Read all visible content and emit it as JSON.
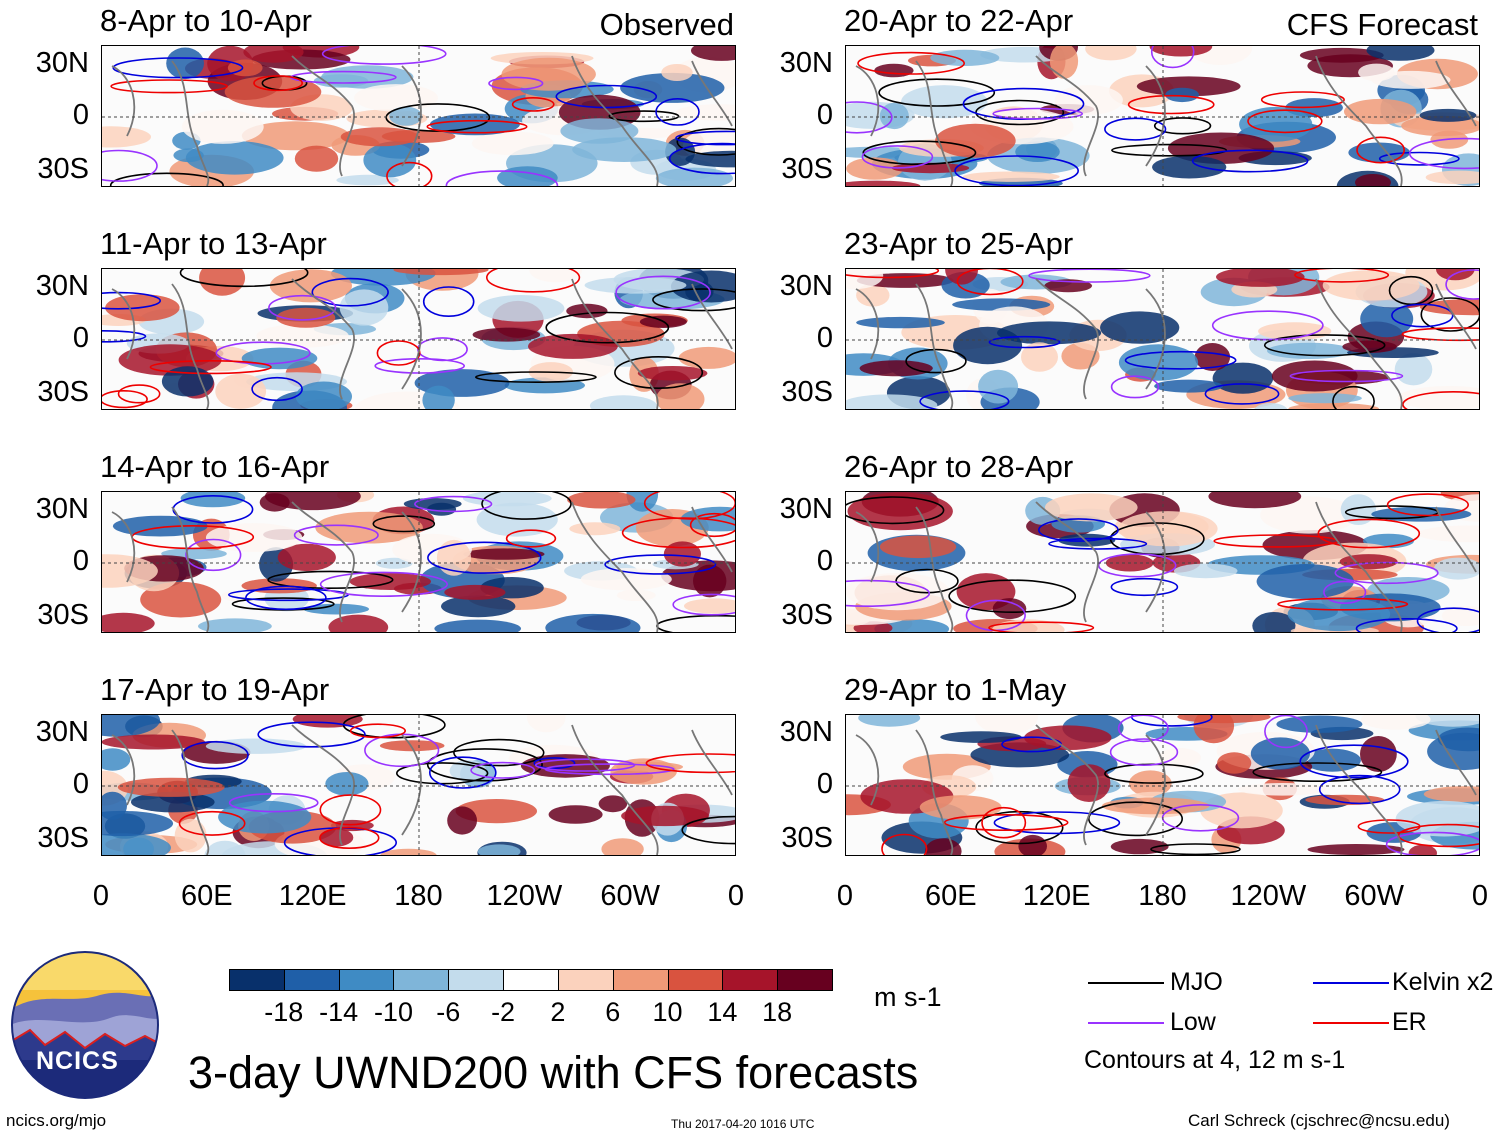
{
  "chart_data": {
    "type": "heatmap",
    "title": "3-day UWND200 with CFS forecasts",
    "columns": [
      {
        "header": "Observed",
        "panels": [
          "8-Apr to 10-Apr",
          "11-Apr to 13-Apr",
          "14-Apr to 16-Apr",
          "17-Apr to 19-Apr"
        ]
      },
      {
        "header": "CFS Forecast",
        "panels": [
          "20-Apr to 22-Apr",
          "23-Apr to 25-Apr",
          "26-Apr to 28-Apr",
          "29-Apr to 1-May"
        ]
      }
    ],
    "y_ticks": [
      "30N",
      "0",
      "30S"
    ],
    "x_ticks": [
      "0",
      "60E",
      "120E",
      "180",
      "120W",
      "60W",
      "0"
    ],
    "colorbar": {
      "levels": [
        "-18",
        "-14",
        "-10",
        "-6",
        "-2",
        "2",
        "6",
        "10",
        "14",
        "18"
      ],
      "colors": [
        "#08306b",
        "#1f5fa8",
        "#3f8bc4",
        "#7fb5d9",
        "#c3dcec",
        "#ffffff",
        "#fbd2bd",
        "#f09a78",
        "#d9533f",
        "#a6142a",
        "#67001f"
      ],
      "units": "m s-1"
    },
    "legend": [
      {
        "label": "MJO",
        "color": "#000000"
      },
      {
        "label": "Kelvin x2",
        "color": "#0000dd"
      },
      {
        "label": "Low",
        "color": "#9933ff"
      },
      {
        "label": "ER",
        "color": "#ee0000"
      }
    ],
    "contour_note": "Contours at 4, 12 m s-1"
  },
  "branding": {
    "logo_text": "NCICS",
    "site": "ncics.org/mjo",
    "timestamp": "Thu 2017-04-20 1016 UTC",
    "author": "Carl Schreck (cjschrec@ncsu.edu)"
  }
}
